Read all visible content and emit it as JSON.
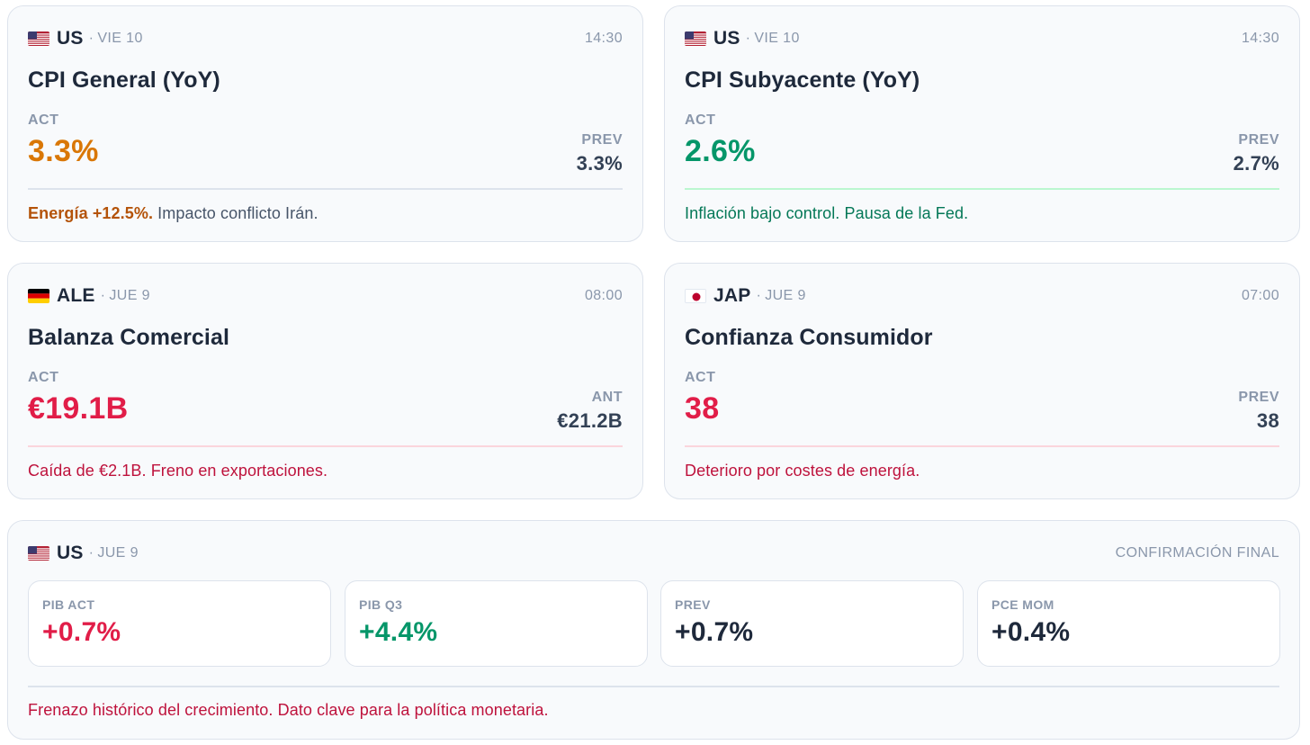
{
  "cards": [
    {
      "flag": "us-flag-icon",
      "country": "US",
      "day": "VIE 10",
      "time": "14:30",
      "title": "CPI General (YoY)",
      "act_label": "ACT",
      "act_value": "3.3%",
      "act_color": "#d97706",
      "prev_label": "PREV",
      "prev_value": "3.3%",
      "divider_color": "#dde3ec",
      "note_bold": "Energía +12.5%.",
      "note_bold_color": "#b45309",
      "note": " Impacto conflicto Irán.",
      "note_color": "#475569"
    },
    {
      "flag": "us-flag-icon",
      "country": "US",
      "day": "VIE 10",
      "time": "14:30",
      "title": "CPI Subyacente (YoY)",
      "act_label": "ACT",
      "act_value": "2.6%",
      "act_color": "#059669",
      "prev_label": "PREV",
      "prev_value": "2.7%",
      "divider_color": "#bbf7d0",
      "note_bold": "",
      "note_bold_color": "#047857",
      "note": "Inflación bajo control. Pausa de la Fed.",
      "note_color": "#047857"
    },
    {
      "flag": "de-flag-icon",
      "country": "ALE",
      "day": "JUE 9",
      "time": "08:00",
      "title": "Balanza Comercial",
      "act_label": "ACT",
      "act_value": "€19.1B",
      "act_color": "#e11d48",
      "prev_label": "ANT",
      "prev_value": "€21.2B",
      "divider_color": "#fbd5dc",
      "note_bold": "",
      "note_bold_color": "#be123c",
      "note": "Caída de €2.1B. Freno en exportaciones.",
      "note_color": "#be123c"
    },
    {
      "flag": "jp-flag-icon",
      "country": "JAP",
      "day": "JUE 9",
      "time": "07:00",
      "title": "Confianza Consumidor",
      "act_label": "ACT",
      "act_value": "38",
      "act_color": "#e11d48",
      "prev_label": "PREV",
      "prev_value": "38",
      "divider_color": "#fbd5dc",
      "note_bold": "",
      "note_bold_color": "#be123c",
      "note": "Deterioro por costes de energía.",
      "note_color": "#be123c"
    }
  ],
  "gdp_card": {
    "flag": "us-flag-icon",
    "country": "US",
    "day": "JUE 9",
    "status": "CONFIRMACIÓN FINAL",
    "metrics": [
      {
        "label": "PIB ACT",
        "value": "+0.7%",
        "color": "#e11d48"
      },
      {
        "label": "PIB Q3",
        "value": "+4.4%",
        "color": "#059669"
      },
      {
        "label": "PREV",
        "value": "+0.7%",
        "color": "#1e293b"
      },
      {
        "label": "PCE MOM",
        "value": "+0.4%",
        "color": "#1e293b"
      }
    ],
    "note": "Frenazo histórico del crecimiento. Dato clave para la política monetaria.",
    "note_color": "#be123c"
  }
}
